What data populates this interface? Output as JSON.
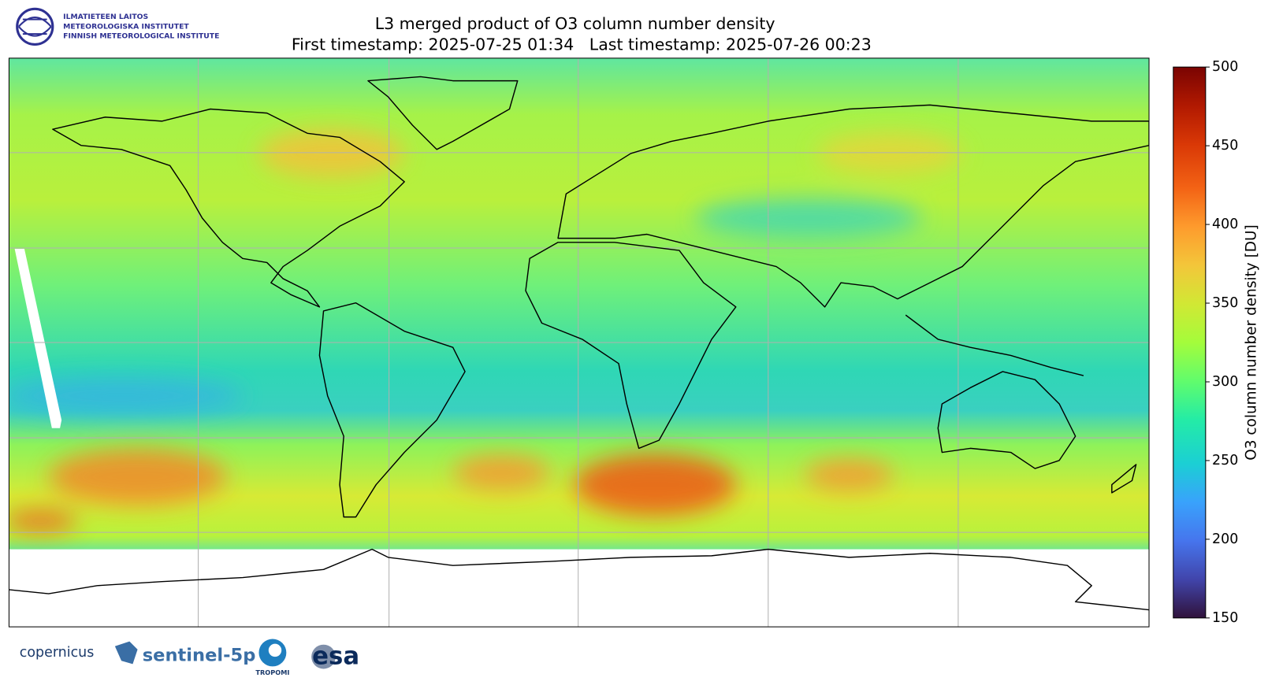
{
  "header": {
    "logo_lines": [
      "ILMATIETEEN LAITOS",
      "METEOROLOGISKA INSTITUTET",
      "FINNISH METEOROLOGICAL INSTITUTE"
    ],
    "title": "L3 merged product of O3 column number density",
    "subtitle": "First timestamp: 2025-07-25 01:34   Last timestamp: 2025-07-26 00:23"
  },
  "colorbar": {
    "label": "O3 column number density [DU]",
    "lim": [
      150,
      500
    ],
    "ticks": [
      150,
      200,
      250,
      300,
      350,
      400,
      450,
      500
    ]
  },
  "footer": {
    "logos": [
      "copernicus",
      "sentinel-5p",
      "TROPOMI",
      "esa"
    ]
  }
}
